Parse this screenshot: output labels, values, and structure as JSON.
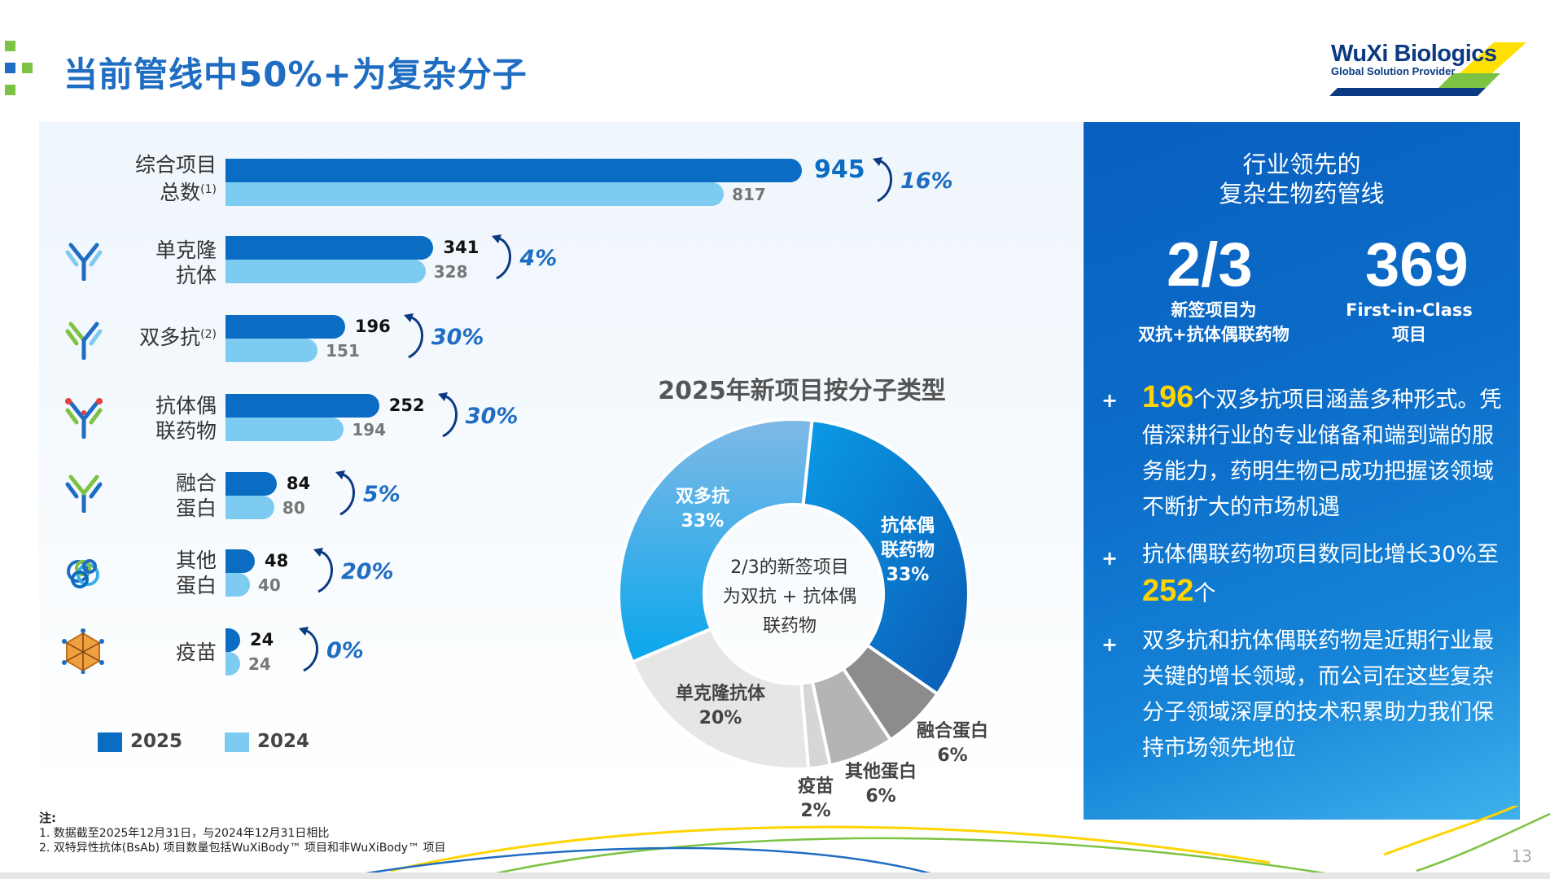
{
  "header": {
    "title": "当前管线中50%+为复杂分子",
    "brand_name": "WuXi Biologics",
    "brand_tagline": "Global Solution Provider"
  },
  "chart_data": [
    {
      "type": "bar",
      "orientation": "horizontal",
      "categories": [
        "综合项目总数(1)",
        "单克隆抗体",
        "双多抗(2)",
        "抗体偶联药物",
        "融合蛋白",
        "其他蛋白",
        "疫苗"
      ],
      "series": [
        {
          "name": "2025",
          "color": "#0a6cc2",
          "values": [
            945,
            341,
            196,
            252,
            84,
            48,
            24
          ]
        },
        {
          "name": "2024",
          "color": "#7ecbf1",
          "values": [
            817,
            328,
            151,
            194,
            80,
            40,
            24
          ]
        }
      ],
      "growth_labels": [
        "16%",
        "4%",
        "30%",
        "30%",
        "5%",
        "20%",
        "0%"
      ],
      "legend": [
        "2025",
        "2024"
      ],
      "legend_position": "bottom-left"
    },
    {
      "type": "pie",
      "donut": true,
      "title": "2025年新项目按分子类型",
      "center_text": [
        "2/3的新签项目",
        "为双抗 + 抗体偶",
        "联药物"
      ],
      "slices": [
        {
          "label": "抗体偶联药物",
          "value": 33,
          "pct": "33%",
          "color": "#0a6cc2"
        },
        {
          "label": "融合蛋白",
          "value": 6,
          "pct": "6%",
          "color": "#8c8c8c"
        },
        {
          "label": "其他蛋白",
          "value": 6,
          "pct": "6%",
          "color": "#b4b4b4"
        },
        {
          "label": "疫苗",
          "value": 2,
          "pct": "2%",
          "color": "#d6d6d6"
        },
        {
          "label": "单克隆抗体",
          "value": 20,
          "pct": "20%",
          "color": "#e6e6e6"
        },
        {
          "label": "双多抗",
          "value": 33,
          "pct": "33%",
          "color": "#38aee8"
        }
      ]
    }
  ],
  "rows": [
    {
      "label_line1": "综合项目",
      "label_line2": "总数",
      "sup": "(1)",
      "v25": "945",
      "v24": "817",
      "pct": "16%"
    },
    {
      "label_line1": "单克隆",
      "label_line2": "抗体",
      "sup": "",
      "v25": "341",
      "v24": "328",
      "pct": "4%"
    },
    {
      "label_line1": "双多抗",
      "label_line2": "",
      "sup": "(2)",
      "v25": "196",
      "v24": "151",
      "pct": "30%"
    },
    {
      "label_line1": "抗体偶",
      "label_line2": "联药物",
      "sup": "",
      "v25": "252",
      "v24": "194",
      "pct": "30%"
    },
    {
      "label_line1": "融合",
      "label_line2": "蛋白",
      "sup": "",
      "v25": "84",
      "v24": "80",
      "pct": "5%"
    },
    {
      "label_line1": "其他",
      "label_line2": "蛋白",
      "sup": "",
      "v25": "48",
      "v24": "40",
      "pct": "20%"
    },
    {
      "label_line1": "疫苗",
      "label_line2": "",
      "sup": "",
      "v25": "24",
      "v24": "24",
      "pct": "0%"
    }
  ],
  "legend": {
    "y2025": "2025",
    "y2024": "2024"
  },
  "donut_labels": {
    "adc": [
      "抗体偶",
      "联药物",
      "33%"
    ],
    "bispecific": [
      "双多抗",
      "33%"
    ],
    "mab": [
      "单克隆抗体",
      "20%"
    ],
    "fusion": [
      "融合蛋白",
      "6%"
    ],
    "other": [
      "其他蛋白",
      "6%"
    ],
    "vaccine": [
      "疫苗",
      "2%"
    ]
  },
  "notes": {
    "heading": "注:",
    "line1": "1. 数据截至2025年12月31日，与2024年12月31日相比",
    "line2": "2. 双特异性抗体(BsAb) 项目数量包括WuXiBody™ 项目和非WuXiBody™ 项目"
  },
  "right_panel": {
    "title_line1": "行业领先的",
    "title_line2": "复杂生物药管线",
    "stat1_value": "2/3",
    "stat1_line1": "新签项目为",
    "stat1_line2": "双抗+抗体偶联药物",
    "stat2_value": "369",
    "stat2_line1": "First-in-Class",
    "stat2_line2": "项目",
    "bullets": [
      {
        "highlight": "196",
        "text": "个双多抗项目涵盖多种形式。凭借深耕行业的专业储备和端到端的服务能力，药明生物已成功把握该领域不断扩大的市场机遇"
      },
      {
        "text_pre": "抗体偶联药物项目数同比增长30%至",
        "highlight": "252",
        "text_post": "个"
      },
      {
        "text": "双多抗和抗体偶联药物是近期行业最关键的增长领域，而公司在这些复杂分子领域深厚的技术积累助力我们保持市场领先地位"
      }
    ]
  },
  "page_number": "13",
  "colors": {
    "primary": "#0a6cc2",
    "light": "#7ecbf1",
    "accent": "#ffd400",
    "green": "#7dc242"
  }
}
